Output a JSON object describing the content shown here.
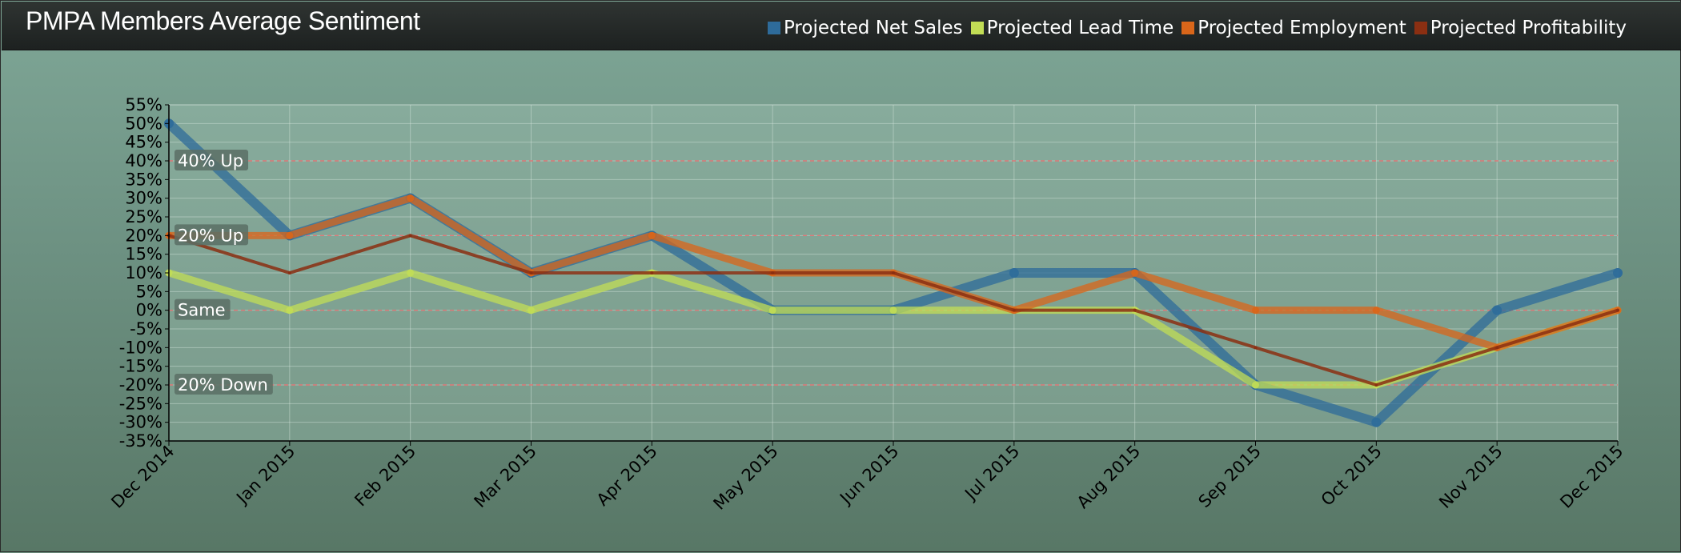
{
  "title": "PMPA Members Average Sentiment",
  "chart_data": {
    "type": "line",
    "title": "PMPA Members Average Sentiment",
    "categories": [
      "Dec 2014",
      "Jan 2015",
      "Feb 2015",
      "Mar 2015",
      "Apr 2015",
      "May 2015",
      "Jun 2015",
      "Jul 2015",
      "Aug 2015",
      "Sep 2015",
      "Oct 2015",
      "Nov 2015",
      "Dec 2015"
    ],
    "series": [
      {
        "name": "Projected Net Sales",
        "color": "#2e6b9a",
        "values": [
          50,
          20,
          30,
          10,
          20,
          0,
          0,
          10,
          10,
          -20,
          -30,
          0,
          10
        ]
      },
      {
        "name": "Projected Lead Time",
        "color": "#c2dd55",
        "values": [
          10,
          0,
          10,
          0,
          10,
          0,
          0,
          0,
          0,
          -20,
          -20,
          -10,
          0
        ]
      },
      {
        "name": "Projected Employment",
        "color": "#d9661a",
        "values": [
          20,
          20,
          30,
          10,
          20,
          10,
          10,
          0,
          10,
          0,
          0,
          -10,
          0
        ]
      },
      {
        "name": "Projected Profitability",
        "color": "#8b2f12",
        "values": [
          20,
          10,
          20,
          10,
          10,
          10,
          10,
          0,
          0,
          -10,
          -20,
          -10,
          0
        ]
      }
    ],
    "ylim": [
      -35,
      55
    ],
    "ytick_step": 5,
    "ytick_labels": [
      "55%",
      "50%",
      "45%",
      "40%",
      "35%",
      "30%",
      "25%",
      "20%",
      "15%",
      "10%",
      "5%",
      "0%",
      "-5%",
      "-10%",
      "-15%",
      "-20%",
      "-25%",
      "-30%",
      "-35%"
    ],
    "reference_lines": [
      {
        "value": 40,
        "label": "40% Up"
      },
      {
        "value": 20,
        "label": "20% Up"
      },
      {
        "value": 0,
        "label": "Same"
      },
      {
        "value": -20,
        "label": "20% Down"
      }
    ],
    "grid": true,
    "legend_position": "top-right"
  }
}
